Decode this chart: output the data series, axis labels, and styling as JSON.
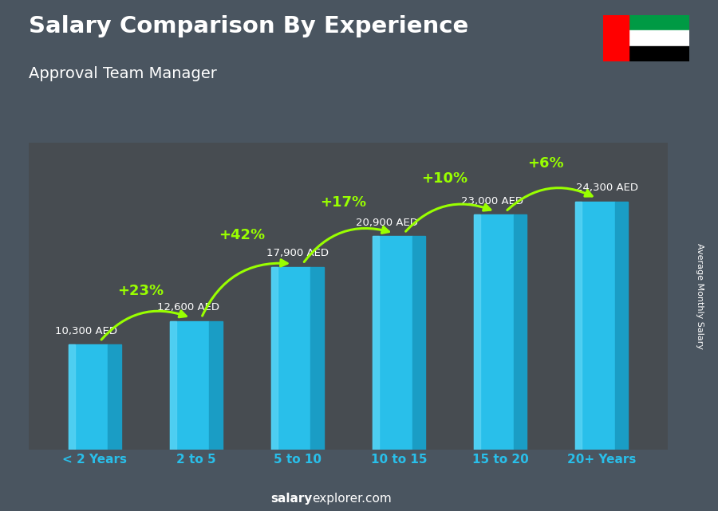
{
  "title": "Salary Comparison By Experience",
  "subtitle": "Approval Team Manager",
  "categories": [
    "< 2 Years",
    "2 to 5",
    "5 to 10",
    "10 to 15",
    "15 to 20",
    "20+ Years"
  ],
  "values": [
    10300,
    12600,
    17900,
    20900,
    23000,
    24300
  ],
  "bar_color_main": "#29BFEA",
  "bar_color_light": "#5DD5F5",
  "bar_color_dark": "#1A9DC5",
  "ylabel": "Average Monthly Salary",
  "salary_labels": [
    "10,300 AED",
    "12,600 AED",
    "17,900 AED",
    "20,900 AED",
    "23,000 AED",
    "24,300 AED"
  ],
  "pct_labels": [
    "+23%",
    "+42%",
    "+17%",
    "+10%",
    "+6%"
  ],
  "pct_color": "#99FF00",
  "title_color": "#FFFFFF",
  "subtitle_color": "#FFFFFF",
  "salary_label_color": "#FFFFFF",
  "xtick_color": "#29BFEA",
  "watermark_bold": "salary",
  "watermark_normal": "explorer.com",
  "bg_color": "#3a4a50",
  "ylim": [
    0,
    30000
  ],
  "arrow_color": "#99FF00"
}
